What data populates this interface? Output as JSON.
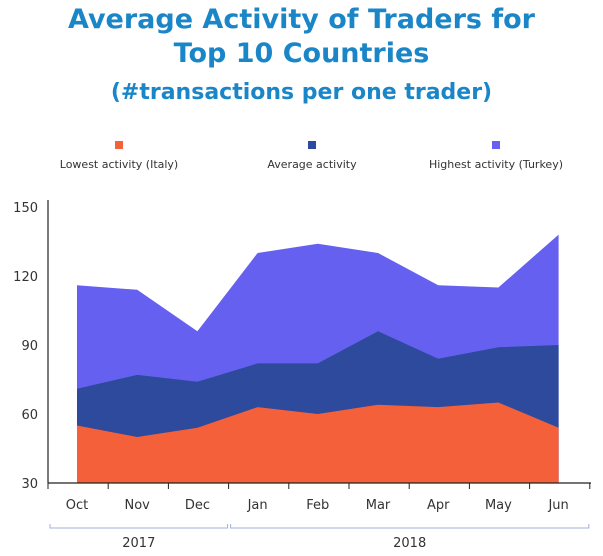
{
  "chart_data": {
    "type": "area",
    "title_line1": "Average Activity of Traders for",
    "title_line2": "Top 10 Countries",
    "subtitle": "(#transactions per one trader)",
    "categories": [
      "Oct",
      "Nov",
      "Dec",
      "Jan",
      "Feb",
      "Mar",
      "Apr",
      "May",
      "Jun"
    ],
    "groups": [
      {
        "label": "2017",
        "span": [
          0,
          2
        ]
      },
      {
        "label": "2018",
        "span": [
          3,
          8
        ]
      }
    ],
    "ylim": [
      30,
      150
    ],
    "yticks": [
      30,
      60,
      90,
      120,
      150
    ],
    "legend_position": "top",
    "grid": false,
    "series": [
      {
        "name": "Highest activity (Turkey)",
        "color": "#6660f0",
        "values": [
          116,
          114,
          96,
          130,
          134,
          130,
          116,
          115,
          138
        ]
      },
      {
        "name": "Average activity",
        "color": "#2d4a9c",
        "values": [
          71,
          77,
          74,
          82,
          82,
          96,
          84,
          89,
          90
        ]
      },
      {
        "name": "Lowest activity (Italy)",
        "color": "#f4603a",
        "values": [
          55,
          50,
          54,
          63,
          60,
          64,
          63,
          65,
          54
        ]
      }
    ],
    "legend_order": [
      2,
      1,
      0
    ]
  }
}
